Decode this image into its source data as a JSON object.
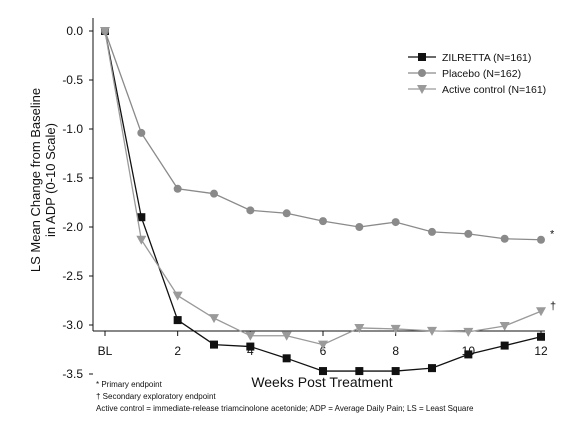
{
  "chart_data": {
    "type": "line",
    "xlabel": "Weeks Post Treatment",
    "ylabel_line1": "LS Mean Change from Baseline",
    "ylabel_line2": "in ADP (0-10 Scale)",
    "x": [
      0,
      1,
      2,
      3,
      4,
      5,
      6,
      7,
      8,
      9,
      10,
      11,
      12
    ],
    "x_tick_labels": [
      {
        "x": 0,
        "label": "BL"
      },
      {
        "x": 2,
        "label": "2"
      },
      {
        "x": 4,
        "label": "4"
      },
      {
        "x": 6,
        "label": "6"
      },
      {
        "x": 8,
        "label": "8"
      },
      {
        "x": 10,
        "label": "10"
      },
      {
        "x": 12,
        "label": "12"
      }
    ],
    "y_ticks": [
      0.0,
      -0.5,
      -1.0,
      -1.5,
      -2.0,
      -2.5,
      -3.0,
      -3.5
    ],
    "y_tick_labels": [
      "0.0",
      "-0.5",
      "-1.0",
      "-1.5",
      "-2.0",
      "-2.5",
      "-3.0",
      "-3.5"
    ],
    "xlim": [
      0,
      12
    ],
    "ylim": [
      -3.7,
      0.05
    ],
    "grid": false,
    "legend_position": "top-right",
    "series": [
      {
        "name": "ZILRETTA (N=161)",
        "color": "#111111",
        "marker": "square",
        "values": [
          0.0,
          -1.9,
          -2.95,
          -3.2,
          -3.22,
          -3.34,
          -3.47,
          -3.47,
          -3.47,
          -3.44,
          -3.3,
          -3.21,
          -3.12
        ]
      },
      {
        "name": "Placebo (N=162)",
        "color": "#8a8a8a",
        "marker": "circle",
        "values": [
          0.0,
          -1.04,
          -1.61,
          -1.66,
          -1.83,
          -1.86,
          -1.94,
          -2.0,
          -1.95,
          -2.05,
          -2.07,
          -2.12,
          -2.13
        ]
      },
      {
        "name": "Active control (N=161)",
        "color": "#9a9a9a",
        "marker": "triangle-down",
        "values": [
          0.0,
          -2.13,
          -2.7,
          -2.93,
          -3.11,
          -3.11,
          -3.2,
          -3.03,
          -3.04,
          -3.06,
          -3.07,
          -3.01,
          -2.86
        ]
      }
    ],
    "annotations": [
      {
        "symbol": "*",
        "series": 1,
        "x": 12
      },
      {
        "symbol": "†",
        "series": 2,
        "x": 12
      }
    ]
  },
  "footnotes": {
    "primary": "*   Primary endpoint",
    "secondary": "†   Secondary exploratory endpoint",
    "definitions": "Active control = immediate-release triamcinolone acetonide; ADP = Average Daily Pain; LS = Least Square"
  }
}
